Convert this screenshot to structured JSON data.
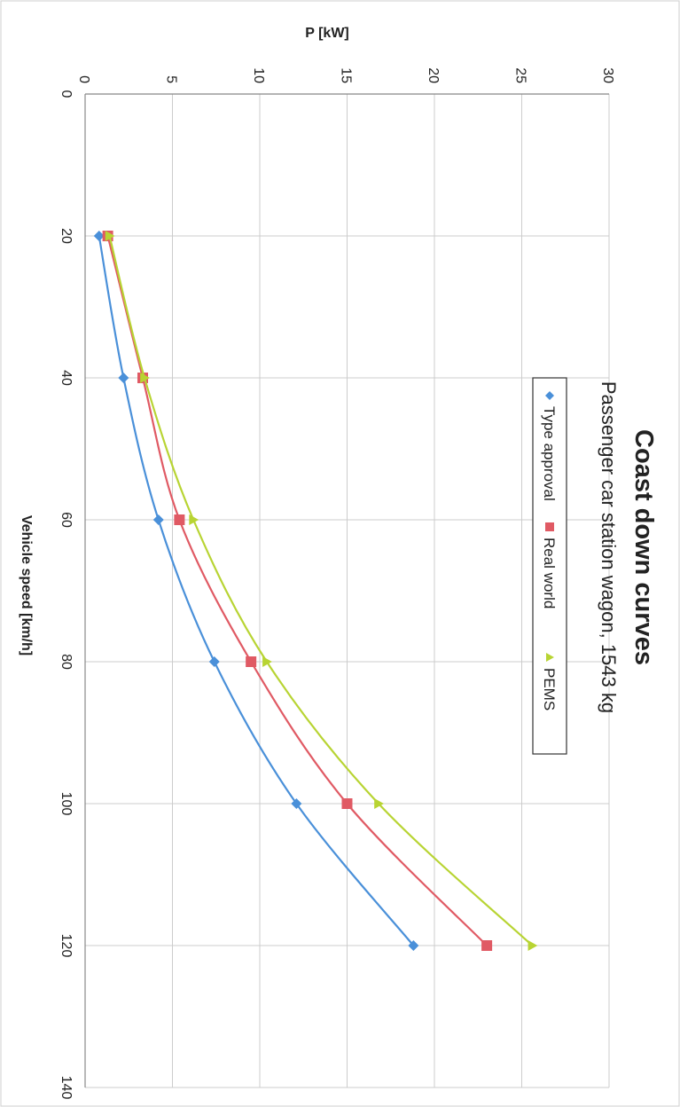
{
  "chart_data": {
    "type": "line",
    "title": "Coast down curves",
    "subtitle": "Passenger car station wagon, 1543 kg",
    "xlabel": "Vehicle speed [km/h]",
    "ylabel": "P [kW]",
    "xlim": [
      0,
      140
    ],
    "ylim": [
      0,
      30
    ],
    "xticks": [
      0,
      20,
      40,
      60,
      80,
      100,
      120,
      140
    ],
    "yticks": [
      0,
      5,
      10,
      15,
      20,
      25,
      30
    ],
    "grid": true,
    "legend_position": "top",
    "orientation": "rotated 90 degrees clockwise",
    "x": [
      20,
      40,
      60,
      80,
      100,
      120
    ],
    "series": [
      {
        "name": "Type approval",
        "marker": "diamond",
        "color": "#4a90d9",
        "values": [
          0.8,
          2.2,
          4.2,
          7.4,
          12.1,
          18.8
        ]
      },
      {
        "name": "Real world",
        "marker": "square",
        "color": "#e05a64",
        "values": [
          1.3,
          3.3,
          5.4,
          9.5,
          15.0,
          23.0
        ]
      },
      {
        "name": "PEMS",
        "marker": "triangle",
        "color": "#b8d433",
        "values": [
          1.4,
          3.4,
          6.2,
          10.4,
          16.8,
          25.6
        ]
      }
    ]
  }
}
